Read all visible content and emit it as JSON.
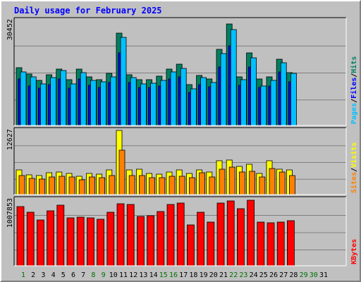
{
  "chart_data": {
    "type": "bar",
    "title": "Daily usage for February 2025",
    "days": [
      "1",
      "2",
      "3",
      "4",
      "5",
      "6",
      "7",
      "8",
      "9",
      "10",
      "11",
      "12",
      "13",
      "14",
      "15",
      "16",
      "17",
      "18",
      "19",
      "20",
      "21",
      "22",
      "23",
      "24",
      "25",
      "26",
      "27",
      "28",
      "29",
      "30",
      "31"
    ],
    "day_colors": [
      "#007000",
      "#000000",
      "#000000",
      "#000000",
      "#000000",
      "#000000",
      "#000000",
      "#007000",
      "#007000",
      "#000000",
      "#000000",
      "#000000",
      "#000000",
      "#000000",
      "#007000",
      "#007000",
      "#000000",
      "#000000",
      "#000000",
      "#000000",
      "#000000",
      "#007000",
      "#007000",
      "#000000",
      "#000000",
      "#000000",
      "#000000",
      "#000000",
      "#007000",
      "#007000",
      "#000000"
    ],
    "panels": [
      {
        "name": "hits-files-pages",
        "ylabel_max": "30452",
        "ymax": 30452,
        "legend": [
          {
            "text": "Pages",
            "color": "#00c0ff"
          },
          {
            "text": "/",
            "color": "#000000"
          },
          {
            "text": "Files",
            "color": "#0000ff"
          },
          {
            "text": "/",
            "color": "#000000"
          },
          {
            "text": "Hits",
            "color": "#008060"
          }
        ],
        "series": [
          {
            "name": "Hits",
            "color": "#008060",
            "values": [
              16700,
              14900,
              13000,
              14700,
              16300,
              13200,
              16300,
              14100,
              13300,
              15100,
              26700,
              14700,
              13200,
              13200,
              14300,
              16300,
              17700,
              11800,
              14600,
              13500,
              22000,
              29400,
              14000,
              21100,
              13500,
              14100,
              19200,
              15400,
              0,
              0,
              0
            ]
          },
          {
            "name": "Files",
            "color": "#0000ff",
            "values": [
              13400,
              11500,
              10900,
              11900,
              13400,
              10800,
              13500,
              11700,
              11000,
              12400,
              21000,
              12400,
              11000,
              11000,
              11500,
              13400,
              14200,
              9700,
              11900,
              11200,
              17000,
              23000,
              11600,
              16900,
              11000,
              11500,
              15600,
              12600,
              0,
              0,
              0
            ]
          },
          {
            "name": "Pages",
            "color": "#00c0ff",
            "values": [
              15600,
              14200,
              12000,
              13900,
              16000,
              12100,
              15400,
              13100,
              12600,
              14200,
              25500,
              13800,
              12000,
              12200,
              13100,
              15600,
              16500,
              10700,
              13900,
              12500,
              20900,
              27800,
              13200,
              19700,
              11500,
              13000,
              18100,
              15100,
              0,
              0,
              0
            ]
          }
        ]
      },
      {
        "name": "visits-sites",
        "ylabel_max": "12627",
        "ymax": 12627,
        "legend": [
          {
            "text": "Sites",
            "color": "#ff8000"
          },
          {
            "text": "/",
            "color": "#000000"
          },
          {
            "text": "Visits",
            "color": "#ffff00"
          }
        ],
        "series": [
          {
            "name": "Visits",
            "color": "#ffff00",
            "values": [
              4900,
              3900,
              3700,
              4300,
              4400,
              4200,
              3600,
              4200,
              4000,
              4900,
              12600,
              4900,
              5000,
              4200,
              4000,
              4400,
              4900,
              4100,
              4900,
              4400,
              6600,
              6800,
              5500,
              6000,
              4100,
              6600,
              5000,
              4800,
              0,
              0,
              0
            ]
          },
          {
            "name": "Sites",
            "color": "#ff8000",
            "values": [
              3700,
              3200,
              3000,
              3500,
              3600,
              3400,
              2900,
              3500,
              3300,
              3800,
              8800,
              3800,
              3700,
              3300,
              3300,
              3600,
              3600,
              3300,
              4300,
              3500,
              5000,
              5400,
              4400,
              4600,
              3500,
              5200,
              4400,
              3700,
              0,
              0,
              0
            ]
          }
        ]
      },
      {
        "name": "kbytes",
        "ylabel_max": "1007853",
        "ymax": 1007853,
        "legend": [
          {
            "text": "KBytes",
            "color": "#ff0000"
          }
        ],
        "series": [
          {
            "name": "KBytes",
            "color": "#ff0000",
            "values": [
              905000,
              818000,
              696000,
              840000,
              921000,
              730000,
              745000,
              733000,
              706000,
              810000,
              945000,
              930000,
              748000,
              758000,
              826000,
              932000,
              957000,
              624000,
              815000,
              667000,
              953000,
              982000,
              871000,
              993000,
              664000,
              659000,
              666000,
              686000,
              0,
              0,
              0
            ]
          }
        ]
      }
    ]
  }
}
